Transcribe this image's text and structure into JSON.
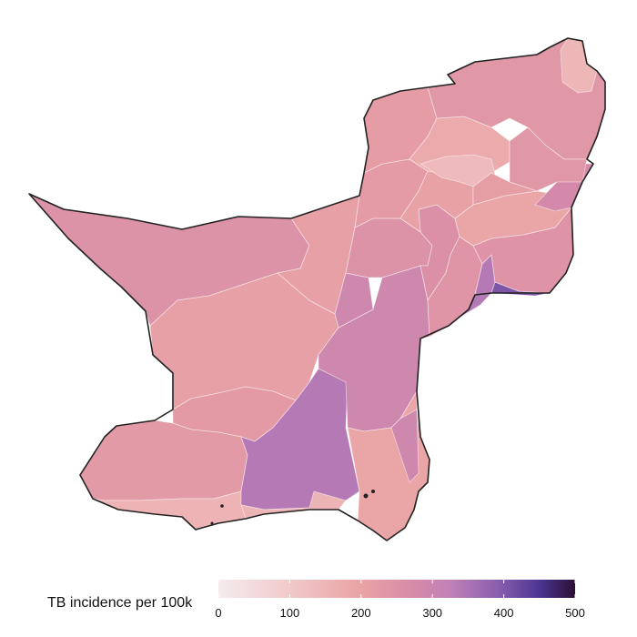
{
  "legend": {
    "title": "TB incidence per 100k",
    "min": 0,
    "max": 500,
    "ticks": [
      "0",
      "100",
      "200",
      "300",
      "400",
      "500"
    ]
  },
  "colors": {
    "scale": [
      "#f5ebee",
      "#f1c9cb",
      "#eaa3a4",
      "#d68aa8",
      "#c081b7",
      "#8a5fae",
      "#4b3593",
      "#2a1033"
    ],
    "outline": "#222222",
    "district_border": "#ffffff"
  },
  "districts": [
    {
      "id": "west-large",
      "value": 188
    },
    {
      "id": "west-center-light",
      "value": 152
    },
    {
      "id": "upper-middle",
      "value": 152
    },
    {
      "id": "central-mid",
      "value": 168
    },
    {
      "id": "south-west",
      "value": 170
    },
    {
      "id": "south-west-coast",
      "value": 112
    },
    {
      "id": "south-center",
      "value": 300
    },
    {
      "id": "south-center-coast",
      "value": 110
    },
    {
      "id": "east-center",
      "value": 240
    },
    {
      "id": "east-center-north",
      "value": 240
    },
    {
      "id": "south-east",
      "value": 138
    },
    {
      "id": "south-east-strip",
      "value": 240
    },
    {
      "id": "center-band",
      "value": 188
    },
    {
      "id": "center-east-1",
      "value": 198
    },
    {
      "id": "center-east-2",
      "value": 182
    },
    {
      "id": "east-purple",
      "value": 300
    },
    {
      "id": "east-dark",
      "value": 372
    },
    {
      "id": "east-large",
      "value": 185
    },
    {
      "id": "east-mid-light",
      "value": 138
    },
    {
      "id": "east-north-pink",
      "value": 222
    },
    {
      "id": "north-1",
      "value": 165
    },
    {
      "id": "north-2",
      "value": 150
    },
    {
      "id": "north-3",
      "value": 162
    },
    {
      "id": "north-4",
      "value": 130
    },
    {
      "id": "north-center-light",
      "value": 100
    },
    {
      "id": "north-east-big",
      "value": 178
    },
    {
      "id": "north-tip",
      "value": 108
    },
    {
      "id": "north-west-1",
      "value": 175
    },
    {
      "id": "north-west-2",
      "value": 158
    }
  ]
}
